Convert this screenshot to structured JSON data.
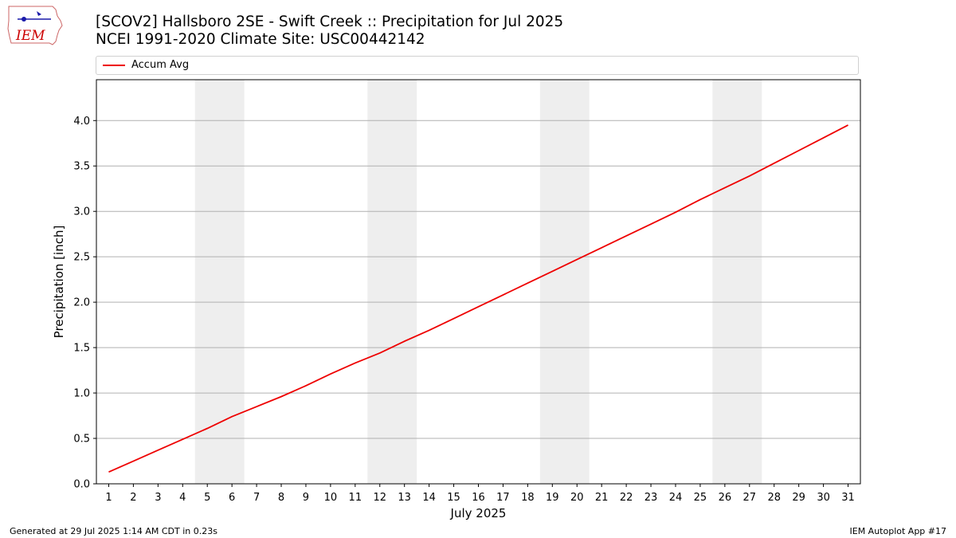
{
  "header": {
    "title_line1": "[SCOV2] Hallsboro 2SE - Swift Creek :: Precipitation for Jul 2025",
    "title_line2": "NCEI 1991-2020 Climate Site: USC00442142"
  },
  "logo": {
    "text": "IEM",
    "icon": "iowa-state-outline-icon",
    "color": "#cc0000"
  },
  "footer": {
    "generated": "Generated at 29 Jul 2025 1:14 AM CDT in 0.23s",
    "app": "IEM Autoplot App #17"
  },
  "chart_data": {
    "type": "line",
    "xlabel": "July 2025",
    "ylabel": "Precipitation [inch]",
    "xlim": [
      0.5,
      31.5
    ],
    "ylim": [
      0,
      4.45
    ],
    "x_ticks": [
      1,
      2,
      3,
      4,
      5,
      6,
      7,
      8,
      9,
      10,
      11,
      12,
      13,
      14,
      15,
      16,
      17,
      18,
      19,
      20,
      21,
      22,
      23,
      24,
      25,
      26,
      27,
      28,
      29,
      30,
      31
    ],
    "y_ticks": [
      0.0,
      0.5,
      1.0,
      1.5,
      2.0,
      2.5,
      3.0,
      3.5,
      4.0
    ],
    "y_tick_labels": [
      "0.0",
      "0.5",
      "1.0",
      "1.5",
      "2.0",
      "2.5",
      "3.0",
      "3.5",
      "4.0"
    ],
    "grid": "horizontal",
    "legend": "top",
    "weekend_shading": [
      [
        5,
        6
      ],
      [
        12,
        13
      ],
      [
        19,
        20
      ],
      [
        26,
        27
      ]
    ],
    "shading_color": "#eeeeee",
    "series": [
      {
        "name": "Accum Avg",
        "color": "#ee0000",
        "x": [
          1,
          2,
          3,
          4,
          5,
          6,
          7,
          8,
          9,
          10,
          11,
          12,
          13,
          14,
          15,
          16,
          17,
          18,
          19,
          20,
          21,
          22,
          23,
          24,
          25,
          26,
          27,
          28,
          29,
          30,
          31
        ],
        "values": [
          0.13,
          0.25,
          0.37,
          0.49,
          0.61,
          0.74,
          0.85,
          0.96,
          1.08,
          1.21,
          1.33,
          1.44,
          1.57,
          1.69,
          1.82,
          1.95,
          2.08,
          2.21,
          2.34,
          2.47,
          2.6,
          2.73,
          2.86,
          2.99,
          3.13,
          3.26,
          3.39,
          3.53,
          3.67,
          3.81,
          3.95
        ]
      }
    ]
  }
}
